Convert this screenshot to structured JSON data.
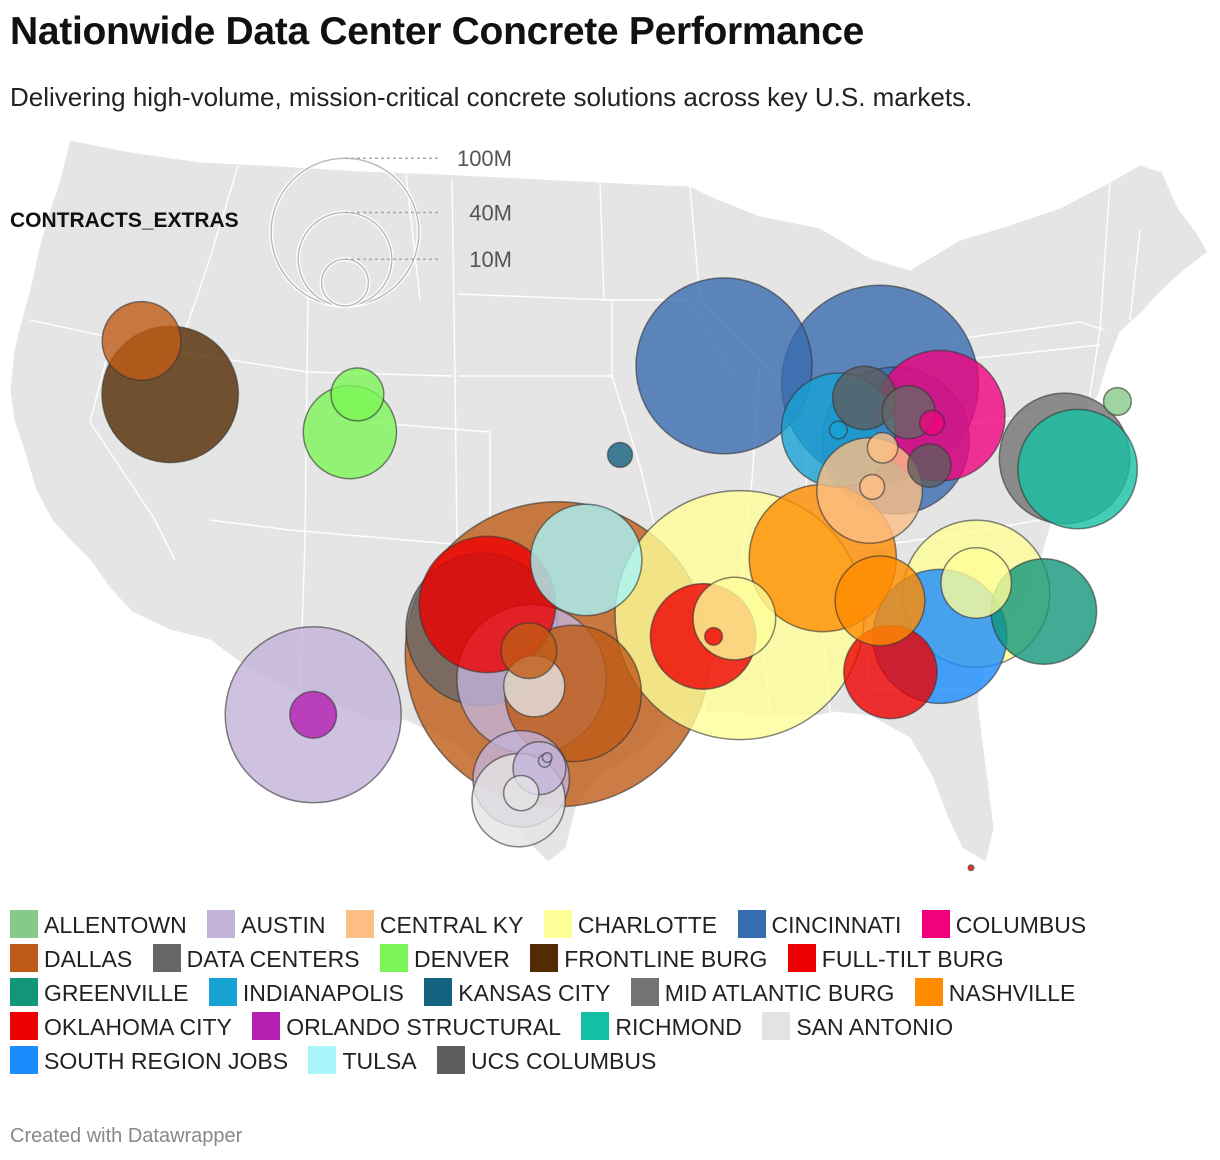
{
  "title": "Nationwide Data Center Concrete Performance",
  "subtitle": "Delivering high-volume, mission-critical concrete solutions across key U.S. markets.",
  "size_legend": {
    "label": "CONTRACTS_EXTRAS",
    "entries": [
      {
        "label": "100M",
        "value": 100000000
      },
      {
        "label": "40M",
        "value": 40000000
      },
      {
        "label": "10M",
        "value": 10000000
      }
    ]
  },
  "legend": [
    {
      "name": "ALLENTOWN",
      "color": "#86c98b"
    },
    {
      "name": "AUSTIN",
      "color": "#c3b3da"
    },
    {
      "name": "CENTRAL KY",
      "color": "#fdbf86"
    },
    {
      "name": "CHARLOTTE",
      "color": "#fefe98"
    },
    {
      "name": "CINCINNATI",
      "color": "#386cb0"
    },
    {
      "name": "COLUMBUS",
      "color": "#f0027f"
    },
    {
      "name": "DALLAS",
      "color": "#bf5b17"
    },
    {
      "name": "DATA CENTERS",
      "color": "#666666"
    },
    {
      "name": "DENVER",
      "color": "#7cf556"
    },
    {
      "name": "FRONTLINE BURG",
      "color": "#522b00"
    },
    {
      "name": "FULL-TILT BURG",
      "color": "#ee0000"
    },
    {
      "name": "GREENVILLE",
      "color": "#11967a"
    },
    {
      "name": "INDIANAPOLIS",
      "color": "#18a2d4"
    },
    {
      "name": "KANSAS CITY",
      "color": "#156280"
    },
    {
      "name": "MID ATLANTIC BURG",
      "color": "#737373"
    },
    {
      "name": "NASHVILLE",
      "color": "#ff8c00"
    },
    {
      "name": "OKLAHOMA CITY",
      "color": "#ee0000"
    },
    {
      "name": "ORLANDO STRUCTURAL",
      "color": "#b41fb1"
    },
    {
      "name": "RICHMOND",
      "color": "#15bfa3"
    },
    {
      "name": "SAN ANTONIO",
      "color": "#e3e3e3"
    },
    {
      "name": "SOUTH REGION JOBS",
      "color": "#1a8cff"
    },
    {
      "name": "TULSA",
      "color": "#a8f5fa"
    },
    {
      "name": "UCS COLUMBUS",
      "color": "#5e5e5e"
    }
  ],
  "footer": "Created with Datawrapper",
  "chart_data": {
    "type": "scatter",
    "subtype": "proportional-symbol-map",
    "region": "United States (contiguous)",
    "size_variable": "CONTRACTS_EXTRAS",
    "color_variable": "market",
    "points": [
      {
        "market": "ALLENTOWN",
        "lon": -75.47,
        "lat": 40.6,
        "value": 2500000
      },
      {
        "market": "AUSTIN",
        "lon": -106.4,
        "lat": 31.8,
        "value": 100000000
      },
      {
        "market": "AUSTIN",
        "lon": -98.4,
        "lat": 30.0,
        "value": 30000000
      },
      {
        "market": "AUSTIN",
        "lon": -97.7,
        "lat": 30.3,
        "value": 9000000
      },
      {
        "market": "AUSTIN",
        "lon": -97.5,
        "lat": 30.5,
        "value": 500000
      },
      {
        "market": "AUSTIN",
        "lon": -97.4,
        "lat": 30.6,
        "value": 300000
      },
      {
        "market": "AUSTIN",
        "lon": -98.0,
        "lat": 32.8,
        "value": 72000000
      },
      {
        "market": "CENTRAL KY",
        "lon": -85.0,
        "lat": 38.1,
        "value": 36000000
      },
      {
        "market": "CENTRAL KY",
        "lon": -84.9,
        "lat": 38.2,
        "value": 2000000
      },
      {
        "market": "CENTRAL KY",
        "lon": -84.5,
        "lat": 39.3,
        "value": 3000000
      },
      {
        "market": "CHARLOTTE",
        "lon": -90.0,
        "lat": 34.6,
        "value": 200000000
      },
      {
        "market": "CHARLOTTE",
        "lon": -90.2,
        "lat": 34.5,
        "value": 22000000
      },
      {
        "market": "CHARLOTTE",
        "lon": -80.9,
        "lat": 35.2,
        "value": 70000000
      },
      {
        "market": "CHARLOTTE",
        "lon": -80.9,
        "lat": 35.5,
        "value": 16000000
      },
      {
        "market": "CINCINNATI",
        "lon": -90.6,
        "lat": 41.6,
        "value": 100000000
      },
      {
        "market": "CINCINNATI",
        "lon": -84.6,
        "lat": 41.1,
        "value": 125000000
      },
      {
        "market": "CINCINNATI",
        "lon": -84.0,
        "lat": 39.5,
        "value": 70000000
      },
      {
        "market": "COLUMBUS",
        "lon": -82.3,
        "lat": 40.2,
        "value": 55000000
      },
      {
        "market": "COLUMBUS",
        "lon": -82.6,
        "lat": 40.0,
        "value": 2000000
      },
      {
        "market": "DALLAS",
        "lon": -97.0,
        "lat": 33.5,
        "value": 300000000
      },
      {
        "market": "DALLAS",
        "lon": -96.4,
        "lat": 32.4,
        "value": 60000000
      },
      {
        "market": "DALLAS",
        "lon": -98.1,
        "lat": 33.6,
        "value": 10000000
      },
      {
        "market": "DALLAS",
        "lon": -113.0,
        "lat": 42.3,
        "value": 20000000
      },
      {
        "market": "DATA CENTERS",
        "lon": -99.9,
        "lat": 34.2,
        "value": 75000000
      },
      {
        "market": "DATA CENTERS",
        "lon": -83.5,
        "lat": 40.3,
        "value": 9000000
      },
      {
        "market": "DENVER",
        "lon": -104.99,
        "lat": 39.74,
        "value": 28000000
      },
      {
        "market": "DENVER",
        "lon": -104.7,
        "lat": 40.8,
        "value": 9000000
      },
      {
        "market": "FRONTLINE BURG",
        "lon": -111.9,
        "lat": 40.8,
        "value": 60000000
      },
      {
        "market": "FRONTLINE BURG",
        "lon": -119.8,
        "lat": 39.5,
        "value": 9000000
      },
      {
        "market": "FULL-TILT BURG",
        "lon": -99.7,
        "lat": 34.9,
        "value": 60000000
      },
      {
        "market": "FULL-TILT BURG",
        "lon": -84.2,
        "lat": 33.0,
        "value": 28000000
      },
      {
        "market": "FULL-TILT BURG",
        "lon": -81.1,
        "lat": 27.5,
        "value": 100000
      },
      {
        "market": "GREENVILLE",
        "lon": -78.3,
        "lat": 34.7,
        "value": 36000000
      },
      {
        "market": "INDIANAPOLIS",
        "lon": -86.2,
        "lat": 39.8,
        "value": 42000000
      },
      {
        "market": "INDIANAPOLIS",
        "lon": -86.2,
        "lat": 39.8,
        "value": 1000000
      },
      {
        "market": "KANSAS CITY",
        "lon": -94.6,
        "lat": 39.1,
        "value": 2000000
      },
      {
        "market": "MID ATLANTIC BURG",
        "lon": -77.5,
        "lat": 39.0,
        "value": 55000000
      },
      {
        "market": "NASHVILLE",
        "lon": -86.8,
        "lat": 36.2,
        "value": 70000000
      },
      {
        "market": "NASHVILLE",
        "lon": -84.6,
        "lat": 35.0,
        "value": 26000000
      },
      {
        "market": "OKLAHOMA CITY",
        "lon": -91.4,
        "lat": 34.0,
        "value": 36000000
      },
      {
        "market": "OKLAHOMA CITY",
        "lon": -91.0,
        "lat": 34.0,
        "value": 1000000
      },
      {
        "market": "ORLANDO STRUCTURAL",
        "lon": -106.4,
        "lat": 31.8,
        "value": 7000000
      },
      {
        "market": "RICHMOND",
        "lon": -77.0,
        "lat": 38.7,
        "value": 46000000
      },
      {
        "market": "SAN ANTONIO",
        "lon": -98.5,
        "lat": 29.4,
        "value": 28000000
      },
      {
        "market": "SAN ANTONIO",
        "lon": -98.4,
        "lat": 29.6,
        "value": 4000000
      },
      {
        "market": "SAN ANTONIO",
        "lon": -97.9,
        "lat": 32.6,
        "value": 12000000
      },
      {
        "market": "SOUTH REGION JOBS",
        "lon": -82.3,
        "lat": 34.0,
        "value": 58000000
      },
      {
        "market": "TULSA",
        "lon": -95.9,
        "lat": 36.15,
        "value": 40000000
      },
      {
        "market": "UCS COLUMBUS",
        "lon": -85.2,
        "lat": 40.7,
        "value": 13000000
      },
      {
        "market": "UCS COLUMBUS",
        "lon": -82.7,
        "lat": 38.8,
        "value": 6000000
      }
    ]
  }
}
